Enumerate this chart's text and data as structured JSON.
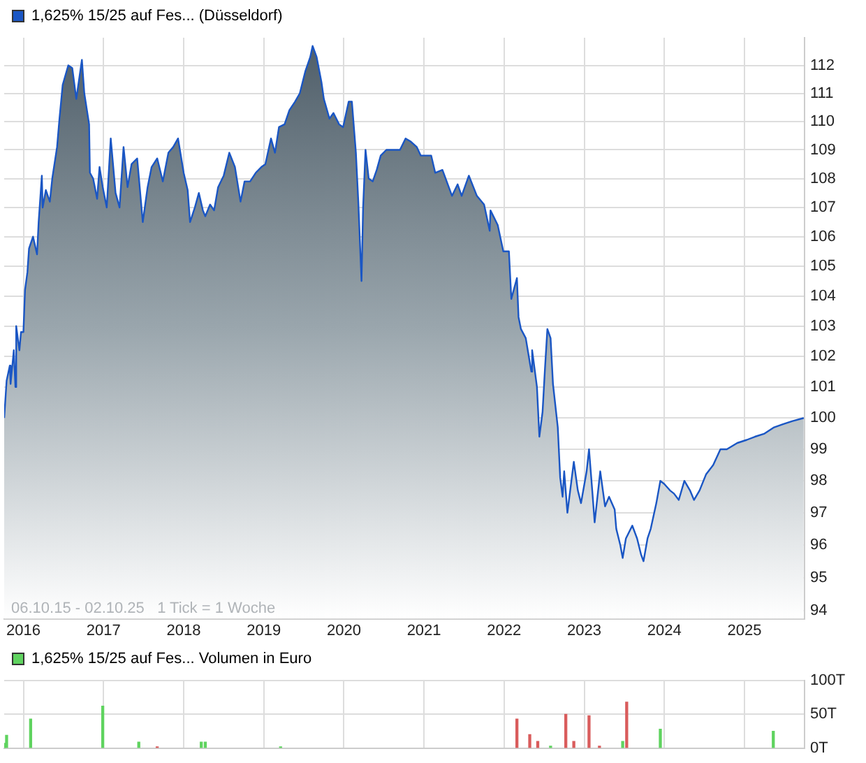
{
  "chart_data": [
    {
      "type": "area",
      "legend": "top left",
      "log": true,
      "grid": true,
      "xlim": [
        2015.76,
        2025.75
      ],
      "xticks": [
        2016,
        2017,
        2018,
        2019,
        2020,
        2021,
        2022,
        2023,
        2024,
        2025
      ],
      "ylim": [
        93.75,
        113
      ],
      "yticks": [
        94,
        95,
        96,
        97,
        98,
        99,
        100,
        101,
        102,
        103,
        104,
        105,
        106,
        107,
        108,
        109,
        110,
        111,
        112
      ],
      "annotations": [
        "06.10.15 - 02.10.25   1 Tick = 1 Woche"
      ],
      "series": [
        {
          "name": "1,625% 15/25 auf Fes... (Düsseldorf)",
          "color": "#1a56c4",
          "x": [
            2015.76,
            2015.79,
            2015.83,
            2015.84,
            2015.88,
            2015.9,
            2015.91,
            2015.95,
            2015.97,
            2016.0,
            2016.02,
            2016.05,
            2016.07,
            2016.12,
            2016.17,
            2016.19,
            2016.23,
            2016.24,
            2016.28,
            2016.33,
            2016.36,
            2016.42,
            2016.45,
            2016.49,
            2016.56,
            2016.61,
            2016.66,
            2016.73,
            2016.76,
            2016.82,
            2016.83,
            2016.87,
            2016.92,
            2016.95,
            2016.99,
            2017.04,
            2017.09,
            2017.15,
            2017.2,
            2017.25,
            2017.3,
            2017.35,
            2017.42,
            2017.49,
            2017.55,
            2017.6,
            2017.67,
            2017.74,
            2017.81,
            2017.87,
            2017.93,
            2018.0,
            2018.05,
            2018.08,
            2018.14,
            2018.19,
            2018.24,
            2018.27,
            2018.33,
            2018.38,
            2018.43,
            2018.5,
            2018.57,
            2018.64,
            2018.71,
            2018.76,
            2018.83,
            2018.9,
            2018.97,
            2019.02,
            2019.09,
            2019.14,
            2019.19,
            2019.26,
            2019.32,
            2019.39,
            2019.45,
            2019.52,
            2019.58,
            2019.61,
            2019.66,
            2019.72,
            2019.75,
            2019.82,
            2019.87,
            2019.94,
            2019.99,
            2020.06,
            2020.1,
            2020.15,
            2020.18,
            2020.22,
            2020.24,
            2020.27,
            2020.31,
            2020.36,
            2020.41,
            2020.46,
            2020.53,
            2020.6,
            2020.65,
            2020.7,
            2020.77,
            2020.83,
            2020.91,
            2020.96,
            2021.09,
            2021.14,
            2021.23,
            2021.35,
            2021.42,
            2021.47,
            2021.56,
            2021.66,
            2021.75,
            2021.82,
            2021.83,
            2021.92,
            2021.99,
            2022.06,
            2022.09,
            2022.16,
            2022.18,
            2022.21,
            2022.27,
            2022.34,
            2022.35,
            2022.41,
            2022.44,
            2022.48,
            2022.51,
            2022.54,
            2022.58,
            2022.61,
            2022.67,
            2022.7,
            2022.73,
            2022.75,
            2022.79,
            2022.84,
            2022.87,
            2022.92,
            2022.96,
            2023.03,
            2023.06,
            2023.1,
            2023.13,
            2023.2,
            2023.26,
            2023.31,
            2023.38,
            2023.4,
            2023.45,
            2023.48,
            2023.52,
            2023.6,
            2023.66,
            2023.71,
            2023.74,
            2023.79,
            2023.83,
            2023.9,
            2023.95,
            2024.0,
            2024.07,
            2024.12,
            2024.18,
            2024.25,
            2024.32,
            2024.37,
            2024.44,
            2024.52,
            2024.61,
            2024.7,
            2024.78,
            2024.91,
            2025.03,
            2025.13,
            2025.25,
            2025.37,
            2025.48,
            2025.6,
            2025.74
          ],
          "values": [
            100.0,
            101.2,
            101.7,
            101.1,
            102.2,
            101.0,
            103.0,
            102.2,
            102.8,
            102.8,
            104.2,
            104.8,
            105.6,
            106.0,
            105.4,
            106.5,
            108.1,
            107.0,
            107.6,
            107.2,
            108.0,
            109.1,
            110.1,
            111.3,
            112.0,
            111.9,
            110.8,
            112.2,
            111.0,
            109.9,
            108.2,
            108.0,
            107.3,
            108.4,
            107.7,
            107.0,
            109.4,
            107.5,
            107.0,
            109.1,
            107.7,
            108.5,
            108.7,
            106.5,
            107.7,
            108.4,
            108.7,
            107.9,
            108.9,
            109.1,
            109.4,
            108.2,
            107.6,
            106.5,
            107.0,
            107.5,
            106.9,
            106.7,
            107.1,
            106.9,
            107.7,
            108.1,
            108.9,
            108.4,
            107.2,
            107.9,
            107.9,
            108.2,
            108.4,
            108.5,
            109.4,
            108.9,
            109.8,
            109.9,
            110.4,
            110.7,
            111.0,
            111.8,
            112.3,
            112.7,
            112.3,
            111.4,
            110.8,
            110.1,
            110.3,
            109.9,
            109.8,
            110.7,
            110.7,
            108.9,
            107.2,
            104.5,
            107.0,
            109.0,
            108.0,
            107.9,
            108.3,
            108.8,
            109.0,
            109.0,
            109.0,
            109.0,
            109.4,
            109.3,
            109.1,
            108.8,
            108.8,
            108.2,
            108.3,
            107.4,
            107.8,
            107.4,
            108.1,
            107.4,
            107.1,
            106.2,
            106.9,
            106.4,
            105.5,
            105.5,
            103.9,
            104.6,
            103.3,
            102.9,
            102.6,
            101.5,
            102.2,
            101.0,
            99.4,
            100.2,
            101.6,
            102.9,
            102.6,
            101.1,
            99.7,
            98.1,
            97.5,
            98.3,
            97.0,
            98.0,
            98.6,
            97.7,
            97.3,
            98.3,
            99.0,
            97.7,
            96.7,
            98.3,
            97.2,
            97.5,
            97.1,
            96.5,
            96.0,
            95.6,
            96.2,
            96.6,
            96.2,
            95.7,
            95.5,
            96.2,
            96.5,
            97.3,
            98.0,
            97.9,
            97.7,
            97.6,
            97.4,
            98.0,
            97.7,
            97.4,
            97.7,
            98.2,
            98.5,
            99.0,
            99.0,
            99.2,
            99.3,
            99.4,
            99.5,
            99.7,
            99.8,
            99.9,
            100.0
          ]
        }
      ]
    },
    {
      "type": "bar",
      "legend": "top left",
      "grid": true,
      "tick_labels": "y",
      "xlim": [
        2015.76,
        2025.75
      ],
      "xticks": [
        2016,
        2017,
        2018,
        2019,
        2020,
        2021,
        2022,
        2023,
        2024,
        2025
      ],
      "ylim": [
        0,
        100
      ],
      "yticks": [
        {
          "value": 0,
          "label": "0T"
        },
        {
          "value": 50,
          "label": "50T"
        },
        {
          "value": 100,
          "label": "100T"
        }
      ],
      "series": [
        {
          "name": "1,625% 15/25 auf Fes... Volumen in Euro",
          "color": "#5fd35f",
          "x": [
            2015.76,
            2015.79,
            2016.09,
            2016.99,
            2017.44,
            2017.67,
            2018.22,
            2018.27,
            2019.21,
            2022.16,
            2022.32,
            2022.42,
            2022.58,
            2022.77,
            2022.87,
            2023.06,
            2023.19,
            2023.48,
            2023.53,
            2023.95,
            2025.36
          ],
          "values": [
            7,
            19,
            43,
            62,
            9,
            2,
            9,
            9,
            2,
            43,
            20,
            10,
            3,
            50,
            10,
            48,
            3,
            10,
            68,
            28,
            25
          ],
          "colors": [
            "#5fd35f",
            "#5fd35f",
            "#5fd35f",
            "#5fd35f",
            "#5fd35f",
            "#d95c5c",
            "#5fd35f",
            "#5fd35f",
            "#5fd35f",
            "#d95c5c",
            "#d95c5c",
            "#d95c5c",
            "#5fd35f",
            "#d95c5c",
            "#d95c5c",
            "#d95c5c",
            "#d95c5c",
            "#5fd35f",
            "#d95c5c",
            "#5fd35f",
            "#5fd35f"
          ]
        }
      ]
    }
  ]
}
